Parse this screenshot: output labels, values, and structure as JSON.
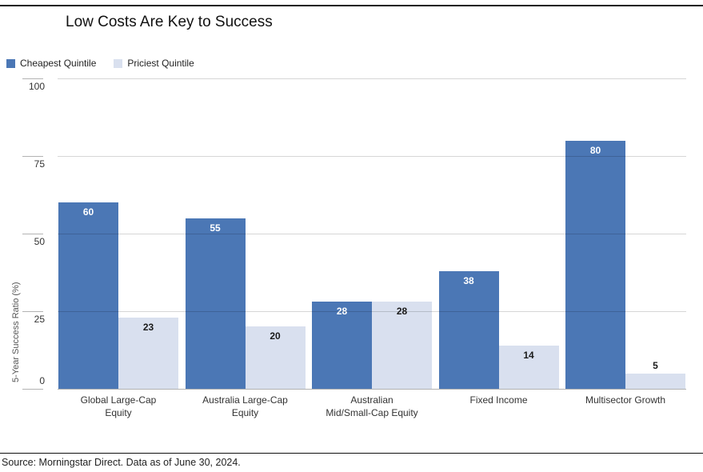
{
  "title": "Low Costs Are Key to Success",
  "source": "Source: Morningstar Direct. Data as of June 30, 2024.",
  "colors": {
    "cheapest_blue": "#4b77b5",
    "priciest_light": "#d9e0ef",
    "gridline": "#cccccc",
    "dark_label": "#ffffff",
    "light_label": "#1a1a1a"
  },
  "chart_data": {
    "type": "bar",
    "title": "Low Costs Are Key to Success",
    "categories": [
      "Global Large-Cap\nEquity",
      "Australia Large-Cap\nEquity",
      "Australian\nMid/Small-Cap Equity",
      "Fixed Income",
      "Multisector Growth"
    ],
    "series": [
      {
        "name": "Cheapest Quintile",
        "color": "#4b77b5",
        "label_color": "#ffffff",
        "values": [
          60,
          55,
          28,
          38,
          80
        ]
      },
      {
        "name": "Priciest Quintile",
        "color": "#d9e0ef",
        "label_color": "#1a1a1a",
        "values": [
          23,
          20,
          28,
          14,
          5
        ]
      }
    ],
    "xlabel": "",
    "ylabel": "5-Year Success Ratio (%)",
    "yticks": [
      0,
      25,
      50,
      75,
      100
    ],
    "ylim": [
      0,
      100
    ],
    "grid": true,
    "legend_position": "top-left"
  }
}
